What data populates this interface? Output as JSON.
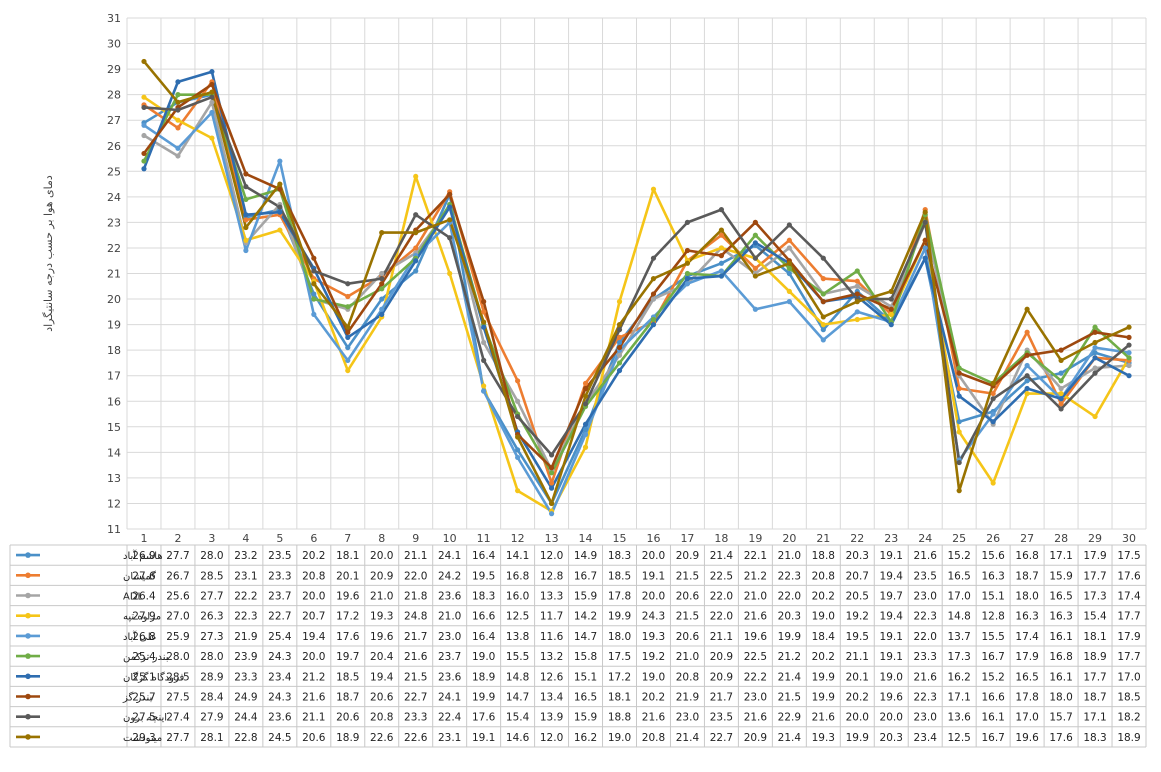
{
  "chart_data": {
    "type": "line",
    "ylabel": "دمای هوا بر حسب درجه سانتیگراد",
    "xlabel": "",
    "ylim": [
      11,
      31
    ],
    "yticks": [
      11,
      12,
      13,
      14,
      15,
      16,
      17,
      18,
      19,
      20,
      21,
      22,
      23,
      24,
      25,
      26,
      27,
      28,
      29,
      30,
      31
    ],
    "grid": true,
    "legend": "table-below",
    "categories": [
      "1",
      "2",
      "3",
      "4",
      "5",
      "6",
      "7",
      "8",
      "9",
      "10",
      "11",
      "12",
      "13",
      "14",
      "15",
      "16",
      "17",
      "18",
      "19",
      "20",
      "21",
      "22",
      "23",
      "24",
      "25",
      "26",
      "27",
      "28",
      "29",
      "30"
    ],
    "series": [
      {
        "name": "هاشم آباد",
        "color": "#4a90c8",
        "values": [
          26.9,
          27.7,
          28.0,
          23.2,
          23.5,
          20.2,
          18.1,
          20.0,
          21.1,
          24.1,
          16.4,
          14.1,
          12.0,
          14.9,
          18.3,
          20.0,
          20.9,
          21.4,
          22.1,
          21.0,
          18.8,
          20.3,
          19.1,
          21.6,
          15.2,
          15.6,
          16.8,
          17.1,
          17.9,
          17.5
        ]
      },
      {
        "name": "گمیشان",
        "color": "#ed7d31",
        "values": [
          27.6,
          26.7,
          28.5,
          23.1,
          23.3,
          20.8,
          20.1,
          20.9,
          22.0,
          24.2,
          19.5,
          16.8,
          12.8,
          16.7,
          18.5,
          19.1,
          21.5,
          22.5,
          21.2,
          22.3,
          20.8,
          20.7,
          19.4,
          23.5,
          16.5,
          16.3,
          18.7,
          15.9,
          17.7,
          17.6
        ]
      },
      {
        "name": "ADL",
        "color": "#a5a5a5",
        "values": [
          26.4,
          25.6,
          27.7,
          22.2,
          23.7,
          20.0,
          19.6,
          21.0,
          21.8,
          23.6,
          18.3,
          16.0,
          13.3,
          15.9,
          17.8,
          20.0,
          20.6,
          22.0,
          21.0,
          22.0,
          20.2,
          20.5,
          19.7,
          23.0,
          17.0,
          15.1,
          18.0,
          16.5,
          17.3,
          17.4
        ]
      },
      {
        "name": "مراوه تپه",
        "color": "#f5c518",
        "values": [
          27.9,
          27.0,
          26.3,
          22.3,
          22.7,
          20.7,
          17.2,
          19.3,
          24.8,
          21.0,
          16.6,
          12.5,
          11.7,
          14.2,
          19.9,
          24.3,
          21.5,
          22.0,
          21.6,
          20.3,
          19.0,
          19.2,
          19.4,
          22.3,
          14.8,
          12.8,
          16.3,
          16.3,
          15.4,
          17.7
        ]
      },
      {
        "name": "علی آباد",
        "color": "#5b9bd5",
        "values": [
          26.8,
          25.9,
          27.3,
          21.9,
          25.4,
          19.4,
          17.6,
          19.6,
          21.7,
          23.0,
          16.4,
          13.8,
          11.6,
          14.7,
          18.0,
          19.3,
          20.6,
          21.1,
          19.6,
          19.9,
          18.4,
          19.5,
          19.1,
          22.0,
          13.7,
          15.5,
          17.4,
          16.1,
          18.1,
          17.9
        ]
      },
      {
        "name": "بندر ترکمن",
        "color": "#70ad47",
        "values": [
          25.4,
          28.0,
          28.0,
          23.9,
          24.3,
          20.0,
          19.7,
          20.4,
          21.6,
          23.7,
          19.0,
          15.5,
          13.2,
          15.8,
          17.5,
          19.2,
          21.0,
          20.9,
          22.5,
          21.2,
          20.2,
          21.1,
          19.1,
          23.3,
          17.3,
          16.7,
          17.9,
          16.8,
          18.9,
          17.7
        ]
      },
      {
        "name": "فرودگاه گرگان",
        "color": "#2e6db0",
        "values": [
          25.1,
          28.5,
          28.9,
          23.3,
          23.4,
          21.2,
          18.5,
          19.4,
          21.5,
          23.6,
          18.9,
          14.8,
          12.6,
          15.1,
          17.2,
          19.0,
          20.8,
          20.9,
          22.2,
          21.4,
          19.9,
          20.1,
          19.0,
          21.6,
          16.2,
          15.2,
          16.5,
          16.1,
          17.7,
          17.0
        ]
      },
      {
        "name": "بندر گز",
        "color": "#9e480e",
        "values": [
          25.7,
          27.5,
          28.4,
          24.9,
          24.3,
          21.6,
          18.7,
          20.6,
          22.7,
          24.1,
          19.9,
          14.7,
          13.4,
          16.5,
          18.1,
          20.2,
          21.9,
          21.7,
          23.0,
          21.5,
          19.9,
          20.2,
          19.6,
          22.3,
          17.1,
          16.6,
          17.8,
          18.0,
          18.7,
          18.5
        ]
      },
      {
        "name": "اینچه برون",
        "color": "#5a5a5a",
        "values": [
          27.5,
          27.4,
          27.9,
          24.4,
          23.6,
          21.1,
          20.6,
          20.8,
          23.3,
          22.4,
          17.6,
          15.4,
          13.9,
          15.9,
          18.8,
          21.6,
          23.0,
          23.5,
          21.6,
          22.9,
          21.6,
          20.0,
          20.0,
          23.0,
          13.6,
          16.1,
          17.0,
          15.7,
          17.1,
          18.2
        ]
      },
      {
        "name": "مینودشت",
        "color": "#997300",
        "values": [
          29.3,
          27.7,
          28.1,
          22.8,
          24.5,
          20.6,
          18.9,
          22.6,
          22.6,
          23.1,
          19.1,
          14.6,
          12.0,
          16.2,
          19.0,
          20.8,
          21.4,
          22.7,
          20.9,
          21.4,
          19.3,
          19.9,
          20.3,
          23.4,
          12.5,
          16.7,
          19.6,
          17.6,
          18.3,
          18.9
        ]
      }
    ]
  }
}
